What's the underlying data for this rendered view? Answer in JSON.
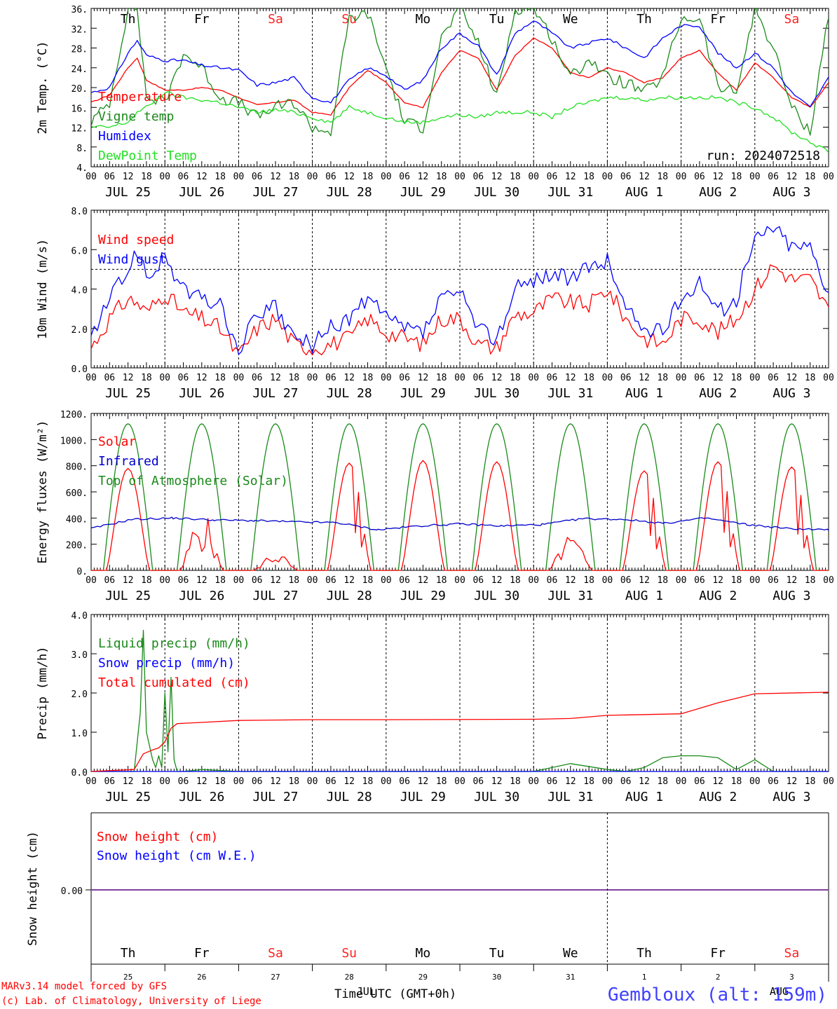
{
  "chart_data": [
    {
      "type": "line",
      "ylabel": "2m Temp. (°C)",
      "ylim": [
        4,
        36
      ],
      "yticks": [
        "4.",
        "8.",
        "12.",
        "16.",
        "20.",
        "24.",
        "28.",
        "32.",
        "36."
      ],
      "run_label": "run: 2024072518",
      "day_labels": [
        "Th",
        "Fr",
        "Sa",
        "Su",
        "Mo",
        "Tu",
        "We",
        "Th",
        "Fr",
        "Sa"
      ],
      "weekend_color": "#ff2020",
      "hour_labels": [
        "00",
        "06",
        "12",
        "18"
      ],
      "date_labels": [
        "JUL 25",
        "JUL 26",
        "JUL 27",
        "JUL 28",
        "JUL 29",
        "JUL 30",
        "JUL 31",
        "AUG 1",
        "AUG 2",
        "AUG 3"
      ],
      "x_hours": [
        0,
        6,
        12,
        15,
        18,
        24,
        30,
        36,
        42,
        48,
        54,
        60,
        66,
        72,
        78,
        84,
        90,
        96,
        102,
        108,
        114,
        120,
        126,
        132,
        138,
        144,
        150,
        156,
        162,
        168,
        174,
        180,
        186,
        192,
        198,
        204,
        210,
        216,
        222,
        228,
        234,
        240
      ],
      "series": [
        {
          "name": "Temperature",
          "color": "#ff0000",
          "values": [
            17,
            18.5,
            24,
            26,
            21.5,
            19.5,
            19.5,
            20,
            19.5,
            18,
            16.5,
            17,
            17.5,
            15,
            14.5,
            20,
            23.5,
            21,
            17,
            16,
            23,
            27.5,
            26,
            19.5,
            26.5,
            30,
            28,
            23,
            22,
            24,
            23,
            21,
            22,
            26,
            27.5,
            23,
            19.5,
            25,
            22,
            18,
            16,
            21
          ]
        },
        {
          "name": "Vigne temp",
          "color": "#1a8a1a",
          "values": [
            13,
            17,
            36,
            36,
            18,
            17,
            27,
            24,
            18,
            17,
            14,
            16,
            17,
            12,
            11,
            34,
            35,
            24,
            13,
            12,
            30,
            36,
            29,
            18,
            36,
            36,
            30,
            22,
            26,
            22,
            21,
            19,
            22,
            34,
            34,
            20,
            19,
            36,
            28,
            16,
            11,
            35
          ]
        },
        {
          "name": "Humidex",
          "color": "#0000ff",
          "values": [
            19,
            20,
            27,
            29.5,
            26.5,
            25.5,
            25.5,
            24.5,
            24,
            23.5,
            20.5,
            21,
            22,
            18,
            17,
            21.5,
            24,
            22.5,
            19.5,
            21.5,
            28,
            31,
            28.5,
            22.5,
            31,
            33.5,
            31,
            28,
            29,
            30,
            28,
            26,
            30,
            32.5,
            32.5,
            27,
            24,
            27,
            24,
            19,
            16,
            22
          ]
        },
        {
          "name": "DewPoint Temp",
          "color": "#22e022",
          "values": [
            12,
            12,
            13,
            15,
            16,
            19,
            18,
            17.5,
            17,
            16,
            15,
            15.5,
            15,
            14,
            13,
            16,
            15,
            14,
            13,
            13,
            14,
            14.5,
            14,
            15,
            15,
            15,
            14,
            16,
            17,
            18,
            18,
            17.5,
            18,
            18,
            18,
            18,
            17,
            16,
            14,
            11,
            9,
            7
          ]
        }
      ]
    },
    {
      "type": "line",
      "ylabel": "10m Wind (m/s)",
      "ylim": [
        0,
        8
      ],
      "yticks": [
        "0.0",
        "2.0",
        "4.0",
        "6.0",
        "8.0"
      ],
      "reference_line": 5.0,
      "x_hours": [
        0,
        6,
        12,
        15,
        18,
        24,
        30,
        36,
        42,
        48,
        54,
        60,
        66,
        72,
        78,
        84,
        90,
        96,
        102,
        108,
        114,
        120,
        126,
        132,
        138,
        144,
        150,
        156,
        162,
        168,
        174,
        180,
        186,
        192,
        198,
        204,
        210,
        216,
        222,
        228,
        234,
        240
      ],
      "series": [
        {
          "name": "Wind speed",
          "color": "#ff0000",
          "values": [
            1,
            2.5,
            3.5,
            3.3,
            2.8,
            3.8,
            2.8,
            2.5,
            2,
            0.6,
            2,
            2.5,
            1.2,
            1,
            1.2,
            1.5,
            2.5,
            1.8,
            1.5,
            1.2,
            2.5,
            2.5,
            1.2,
            1,
            2.7,
            2.8,
            3.5,
            3.3,
            3.2,
            4,
            2.5,
            1.5,
            1.2,
            2.5,
            2.5,
            1.8,
            2.5,
            4,
            5.2,
            4.5,
            4.5,
            2.9
          ]
        },
        {
          "name": "Wind gust",
          "color": "#0000ff",
          "values": [
            1.5,
            3.5,
            5,
            6,
            4.5,
            5.6,
            4,
            3.5,
            3.2,
            0.8,
            2.8,
            3,
            1.5,
            1.2,
            2,
            2.5,
            3.5,
            2.5,
            2,
            1.8,
            3.5,
            3.8,
            2,
            1.5,
            4,
            4.5,
            4.8,
            4.5,
            5,
            5.5,
            3,
            2,
            1.8,
            3.5,
            4.5,
            2.8,
            3.5,
            6.5,
            7.2,
            6.2,
            6.2,
            3.9
          ]
        }
      ]
    },
    {
      "type": "line",
      "ylabel": "Energy fluxes (W/m²)",
      "ylim": [
        0,
        1200
      ],
      "yticks": [
        "0.",
        "200.",
        "400.",
        "600.",
        "800.",
        "1000.",
        "1200."
      ],
      "series": [
        {
          "name": "Solar",
          "color": "#ff0000",
          "day_peaks": [
            780,
            460,
            150,
            820,
            840,
            830,
            280,
            760,
            830,
            790
          ]
        },
        {
          "name": "Infrared",
          "color": "#0000cc",
          "values": [
            320,
            390,
            400,
            385,
            380,
            370,
            365,
            310,
            340,
            355,
            340,
            350,
            395,
            390,
            360,
            400,
            350,
            320,
            310
          ]
        },
        {
          "name": "Top of Atmosphere (Solar)",
          "color": "#1a8a1a",
          "day_peak": 1120
        }
      ]
    },
    {
      "type": "line",
      "ylabel": "Precip (mm/h)",
      "ylim": [
        0,
        4
      ],
      "yticks": [
        "0.0",
        "1.0",
        "2.0",
        "3.0",
        "4.0"
      ],
      "series": [
        {
          "name": "Liquid precip (mm/h)",
          "color": "#1a8a1a",
          "x_hours": [
            0,
            14,
            16,
            17,
            18,
            20,
            21,
            22,
            23,
            24,
            25,
            26,
            27,
            28,
            30,
            36,
            48,
            72,
            144,
            150,
            156,
            168,
            174,
            180,
            186,
            192,
            198,
            204,
            210,
            216,
            222,
            240
          ],
          "values": [
            0,
            0,
            1.5,
            3.6,
            1,
            0.3,
            0.1,
            0.4,
            0.1,
            2.0,
            0.5,
            2.4,
            0.3,
            0,
            0,
            0.05,
            0,
            0,
            0,
            0.1,
            0.2,
            0.05,
            0,
            0.1,
            0.35,
            0.4,
            0.4,
            0.35,
            0.05,
            0.3,
            0,
            0
          ]
        },
        {
          "name": "Snow precip (mm/h)",
          "color": "#0000ff",
          "values": [
            0
          ]
        },
        {
          "name": "Total cumulated (cm)",
          "color": "#ff0000",
          "x_hours": [
            0,
            14,
            17,
            20,
            22,
            24,
            26,
            28,
            36,
            48,
            72,
            96,
            144,
            156,
            168,
            180,
            192,
            204,
            216,
            240
          ],
          "values": [
            0,
            0.05,
            0.45,
            0.55,
            0.6,
            0.75,
            1.1,
            1.22,
            1.25,
            1.3,
            1.32,
            1.32,
            1.33,
            1.35,
            1.43,
            1.45,
            1.47,
            1.75,
            1.98,
            2.02
          ]
        }
      ]
    },
    {
      "type": "line",
      "ylabel": "Snow height (cm)",
      "ytick": "0.00",
      "series": [
        {
          "name": "Snow height (cm)",
          "color": "#ff0000",
          "values": [
            0
          ]
        },
        {
          "name": "Snow height (cm W.E.)",
          "color": "#0000ff",
          "values": [
            0
          ]
        }
      ],
      "day_labels": [
        "Th",
        "Fr",
        "Sa",
        "Su",
        "Mo",
        "Tu",
        "We",
        "Th",
        "Fr",
        "Sa"
      ],
      "day_numbers": [
        "25",
        "26",
        "27",
        "28",
        "29",
        "30",
        "31",
        "1",
        "2",
        "3"
      ],
      "xlabel": "Time UTC (GMT+0h)",
      "month_labels": [
        "JUL",
        "AUG"
      ]
    }
  ],
  "footer": {
    "model": "MARv3.14 model forced by GFS",
    "credit": "(c) Lab. of Climatology, University of Liege",
    "location": "Gembloux (alt: 159m)"
  }
}
